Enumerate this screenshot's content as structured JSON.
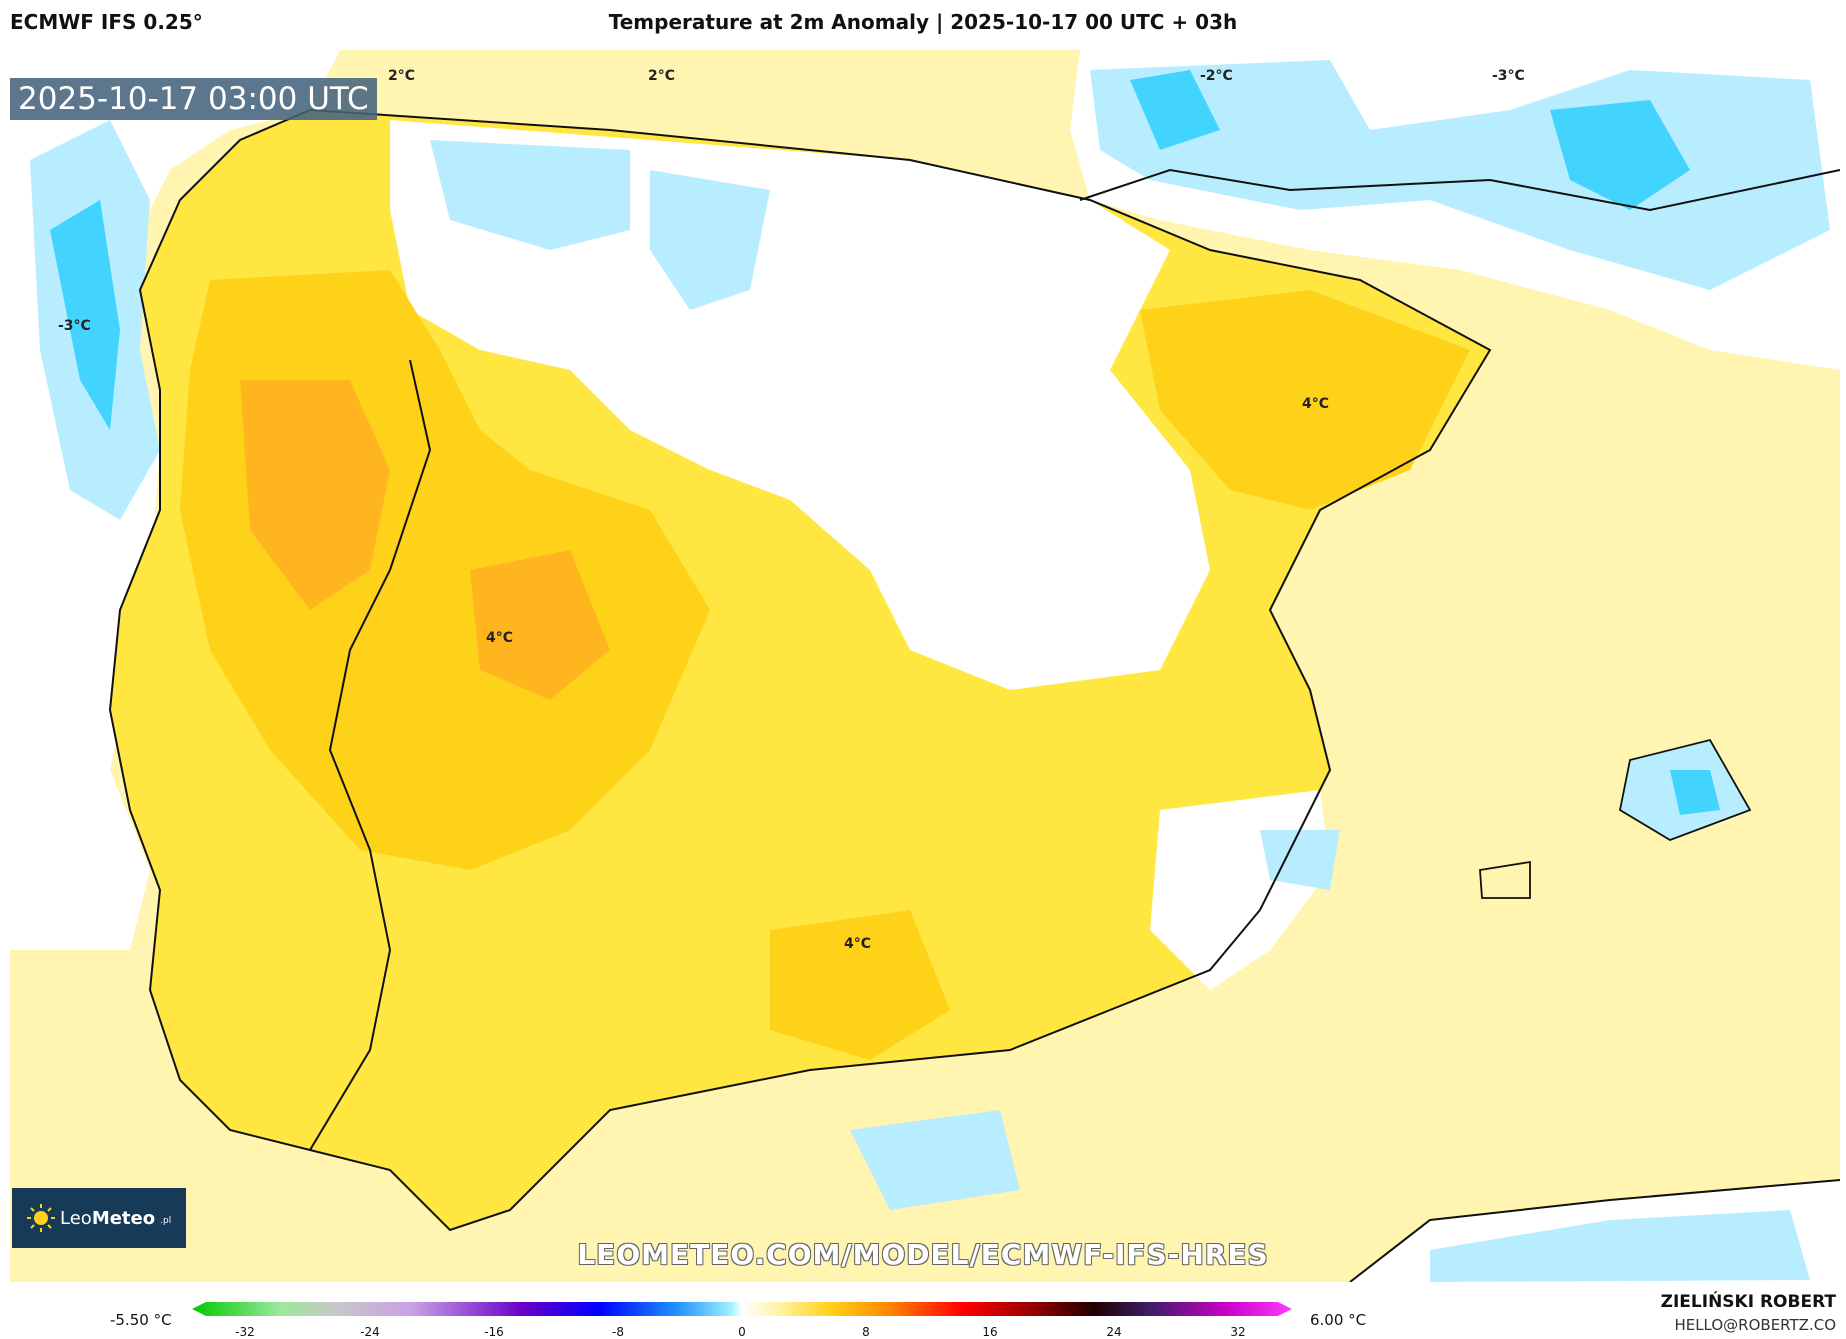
{
  "header": {
    "model": "ECMWF IFS 0.25°",
    "title": "Temperature at 2m Anomaly | 2025-10-17 00 UTC + 03h"
  },
  "map": {
    "timestamp": "2025-10-17 03:00 UTC",
    "contour_labels": [
      "2°C",
      "2°C",
      "-2°C",
      "-3°C",
      "-3°C",
      "4°C",
      "4°C",
      "4°C"
    ],
    "colors": {
      "pale_yellow": "#fff5b0",
      "yellow": "#ffe640",
      "gold": "#ffd21a",
      "orange": "#ffb51e",
      "light_blue": "#b8ecff",
      "cyan": "#42d4ff",
      "land_white": "#ffffff"
    },
    "logo": {
      "brand_light": "Leo",
      "brand_bold": "Meteo",
      "tld": ".pl"
    },
    "watermark": "LEOMETEO.COM/MODEL/ECMWF-IFS-HRES"
  },
  "colorbar": {
    "min_label": "-5.50 °C",
    "max_label": "6.00 °C",
    "ticks": [
      "-32",
      "-24",
      "-16",
      "-8",
      "0",
      "8",
      "16",
      "24",
      "32"
    ]
  },
  "footer": {
    "author": "ZIELIŃSKI ROBERT",
    "email": "HELLO@ROBERTZ.CO"
  }
}
